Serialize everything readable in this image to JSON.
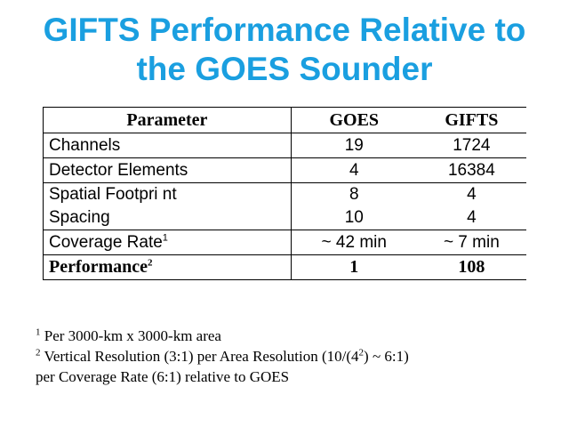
{
  "title": {
    "line1": "GIFTS Performance Relative to",
    "line2": "the GOES Sounder"
  },
  "table": {
    "headers": [
      "Parameter",
      "GOES",
      "GIFTS"
    ],
    "rows": {
      "channels": {
        "label": "Channels",
        "goes": "19",
        "gifts": "1724"
      },
      "detectors": {
        "label": "Detector Elements",
        "goes": "4",
        "gifts": "16384"
      },
      "footprint": {
        "label": "Spatial Footpri nt",
        "goes": "8",
        "gifts": "4"
      },
      "spacing": {
        "label": "Spacing",
        "goes": "10",
        "gifts": "4"
      },
      "coverage": {
        "label": "Coverage Rate",
        "sup": "1",
        "goes": "~ 42 min",
        "gifts": "~ 7 min"
      },
      "performance": {
        "label": "Performance",
        "sup": "2",
        "goes": "1",
        "gifts": "108"
      }
    }
  },
  "footnotes": {
    "n1": {
      "marker": "1",
      "text": " Per 3000-km x 3000-km area"
    },
    "n2": {
      "marker": "2",
      "text_a": " Vertical Resolution (3:1) per Area Resolution (10/(4",
      "exp": "2",
      "text_b": ") ~ 6:1)",
      "line2": "per Coverage Rate (6:1) relative to GOES"
    }
  }
}
